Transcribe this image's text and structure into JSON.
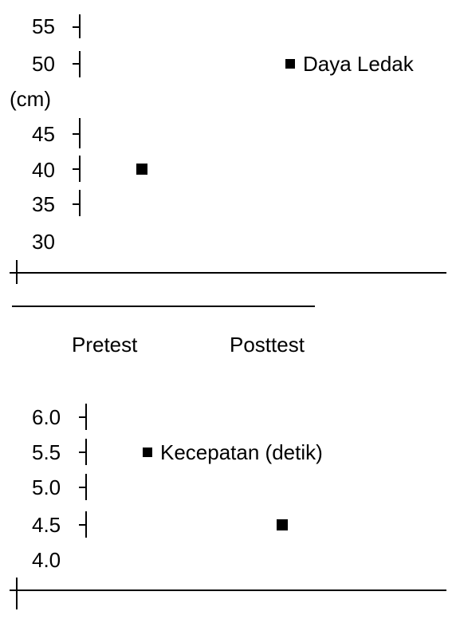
{
  "chart_data": [
    {
      "type": "scatter",
      "ylabel": "(cm)",
      "y_ticks": [
        "55",
        "50",
        "45",
        "40",
        "35",
        "30"
      ],
      "x_ticks": [
        "Pretest",
        "Posttest"
      ],
      "legend": "Daya Ledak",
      "points": [
        {
          "x": "Pretest",
          "y": 40
        }
      ]
    },
    {
      "type": "scatter",
      "ylabel": "",
      "y_ticks": [
        "6.0",
        "5.5",
        "5.0",
        "4.5",
        "4.0"
      ],
      "x_ticks": [],
      "legend": "Kecepatan (detik)",
      "points": [
        {
          "x": "Posttest",
          "y": 4.5
        }
      ]
    }
  ]
}
